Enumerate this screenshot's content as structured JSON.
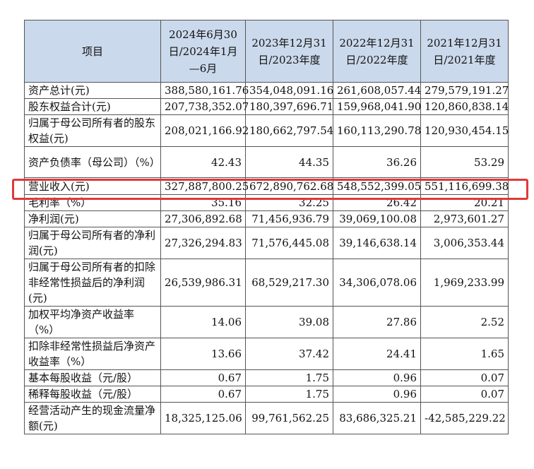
{
  "table": {
    "headers": [
      "项目",
      "2024年6月30日/2024年1月—6月",
      "2023年12月31日/2023年度",
      "2022年12月31日/2022年度",
      "2021年12月31日/2021年度"
    ],
    "rows": [
      {
        "label": "资产总计(元)",
        "values": [
          "388,580,161.76",
          "354,048,091.16",
          "261,608,057.44",
          "279,579,191.27"
        ]
      },
      {
        "label": "股东权益合计(元)",
        "values": [
          "207,738,352.07",
          "180,397,696.71",
          "159,968,041.90",
          "120,860,838.14"
        ]
      },
      {
        "label": "归属于母公司所有者的股东权益(元)",
        "values": [
          "208,021,166.92",
          "180,662,797.54",
          "160,113,290.78",
          "120,930,454.15"
        ]
      },
      {
        "label": "资产负债率（母公司）（%）",
        "values": [
          "42.43",
          "44.35",
          "36.26",
          "53.29"
        ]
      },
      {
        "label": "营业收入(元)",
        "values": [
          "327,887,800.25",
          "672,890,762.68",
          "548,552,399.05",
          "551,116,699.38"
        ]
      },
      {
        "label": "毛利率（%）",
        "values": [
          "35.16",
          "32.25",
          "26.42",
          "20.21"
        ]
      },
      {
        "label": "净利润(元)",
        "values": [
          "27,306,892.68",
          "71,456,936.79",
          "39,069,100.08",
          "2,973,601.27"
        ]
      },
      {
        "label": "归属于母公司所有者的净利润(元)",
        "values": [
          "27,326,294.83",
          "71,576,445.08",
          "39,146,638.14",
          "3,006,353.44"
        ]
      },
      {
        "label": "归属于母公司所有者的扣除非经常性损益后的净利润(元)",
        "values": [
          "26,539,986.31",
          "68,529,217.30",
          "34,306,078.06",
          "1,969,233.99"
        ]
      },
      {
        "label": "加权平均净资产收益率（%）",
        "values": [
          "14.06",
          "39.08",
          "27.86",
          "2.52"
        ]
      },
      {
        "label": "扣除非经常性损益后净资产收益率（%）",
        "values": [
          "13.66",
          "37.42",
          "24.41",
          "1.65"
        ]
      },
      {
        "label": "基本每股收益（元/股）",
        "values": [
          "0.67",
          "1.75",
          "0.96",
          "0.07"
        ]
      },
      {
        "label": "稀释每股收益（元/股）",
        "values": [
          "0.67",
          "1.75",
          "0.96",
          "0.07"
        ]
      },
      {
        "label": "经营活动产生的现金流量净额(元)",
        "values": [
          "18,325,125.06",
          "99,761,562.25",
          "83,686,325.21",
          "-42,585,229.22"
        ]
      }
    ]
  },
  "highlight": {
    "row_label": "营业收入(元)",
    "color": "#e03a3a"
  },
  "colors": {
    "header_bg": "#cbd9ec",
    "border": "#555555"
  }
}
